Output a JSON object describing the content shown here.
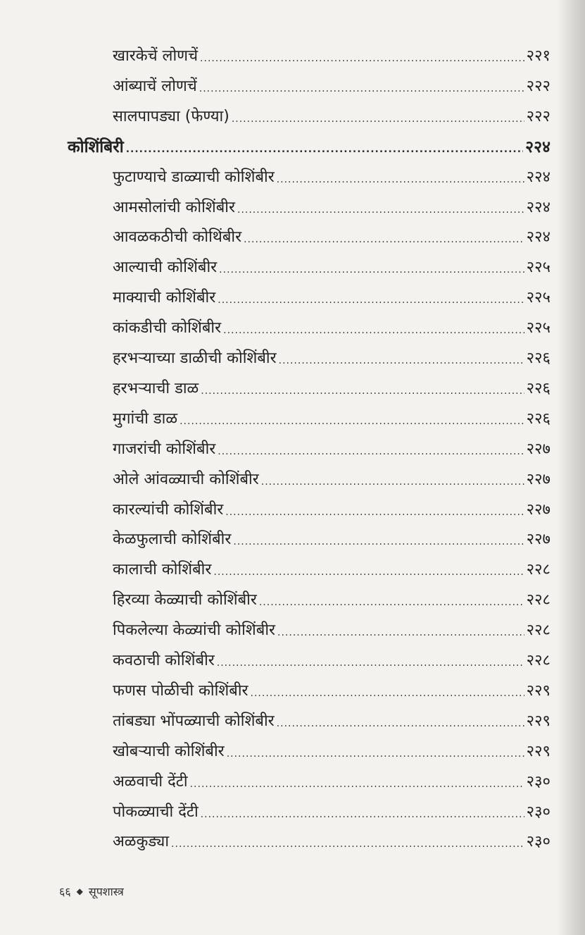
{
  "entries": [
    {
      "title": "खारकेचें लोणचें",
      "page": "२२१",
      "level": "sub"
    },
    {
      "title": "आंब्याचें लोणचें",
      "page": "२२२",
      "level": "sub"
    },
    {
      "title": "सालपापड्या (फेण्या)",
      "page": "२२२",
      "level": "sub"
    },
    {
      "title": "कोशिंबिरी",
      "page": "२२४",
      "level": "head"
    },
    {
      "title": "फुटाण्याचे डाळ्याची कोशिंबीर",
      "page": "२२४",
      "level": "sub"
    },
    {
      "title": "आमसोलांची कोशिंबीर",
      "page": "२२४",
      "level": "sub"
    },
    {
      "title": "आवळकठीची कोथिंबीर",
      "page": "२२४",
      "level": "sub"
    },
    {
      "title": "आल्याची कोशिंबीर",
      "page": "२२५",
      "level": "sub"
    },
    {
      "title": "माक्याची कोशिंबीर",
      "page": "२२५",
      "level": "sub"
    },
    {
      "title": "कांकडीची कोशिंबीर",
      "page": "२२५",
      "level": "sub"
    },
    {
      "title": "हरभऱ्याच्या डाळीची कोशिंबीर",
      "page": "२२६",
      "level": "sub"
    },
    {
      "title": "हरभऱ्याची डाळ",
      "page": "२२६",
      "level": "sub"
    },
    {
      "title": "मुगांची डाळ",
      "page": "२२६",
      "level": "sub"
    },
    {
      "title": "गाजरांची कोशिंबीर",
      "page": "२२७",
      "level": "sub"
    },
    {
      "title": "ओले आंवळ्याची कोशिंबीर",
      "page": "२२७",
      "level": "sub"
    },
    {
      "title": "कारल्यांची कोशिंबीर",
      "page": "२२७",
      "level": "sub"
    },
    {
      "title": "केळफुलाची कोशिंबीर",
      "page": "२२७",
      "level": "sub"
    },
    {
      "title": "कालाची कोशिंबीर",
      "page": "२२८",
      "level": "sub"
    },
    {
      "title": "हिरव्या केळ्याची कोशिंबीर",
      "page": "२२८",
      "level": "sub"
    },
    {
      "title": "पिकलेल्या केळ्यांची कोशिंबीर",
      "page": "२२८",
      "level": "sub"
    },
    {
      "title": "कवठाची कोशिंबीर",
      "page": "२२८",
      "level": "sub"
    },
    {
      "title": "फणस पोळीची कोशिंबीर",
      "page": "२२९",
      "level": "sub"
    },
    {
      "title": "तांबड्या भोंपळ्याची कोशिंबीर",
      "page": "२२९",
      "level": "sub"
    },
    {
      "title": "खोबऱ्याची कोशिंबीर",
      "page": "२२९",
      "level": "sub"
    },
    {
      "title": "अळवाची देंटी",
      "page": "२३०",
      "level": "sub"
    },
    {
      "title": "पोकळ्याची देंटी",
      "page": "२३०",
      "level": "sub"
    },
    {
      "title": "अळकुड्या",
      "page": "२३०",
      "level": "sub"
    }
  ],
  "footer": {
    "page_number": "६६",
    "bullet": "◆",
    "book_title": "सूपशास्त्र"
  }
}
